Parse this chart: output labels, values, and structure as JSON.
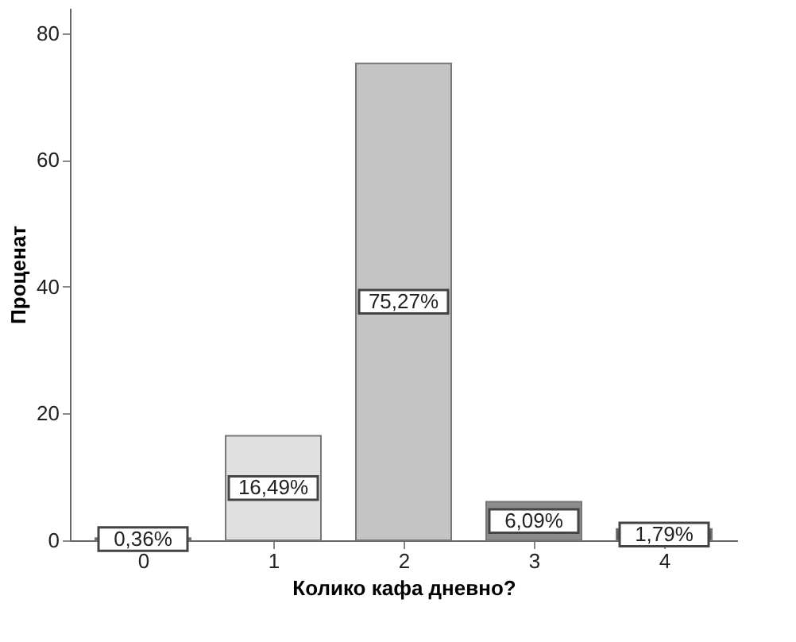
{
  "chart_data": {
    "type": "bar",
    "xlabel": "Колико кафа дневно?",
    "ylabel": "Проценат",
    "categories": [
      "0",
      "1",
      "2",
      "3",
      "4"
    ],
    "values": [
      0.36,
      16.49,
      75.27,
      6.09,
      1.79
    ],
    "colors": [
      "#555555",
      "#e0e0e0",
      "#c4c4c4",
      "#8c8c8c",
      "#5a5a5a"
    ],
    "value_labels": [
      "0,36%",
      "16,49%",
      "75,27%",
      "6,09%",
      "1,79%"
    ],
    "ylim": [
      0,
      84
    ],
    "yticks": [
      0,
      20,
      40,
      60,
      80
    ],
    "grid": false
  }
}
